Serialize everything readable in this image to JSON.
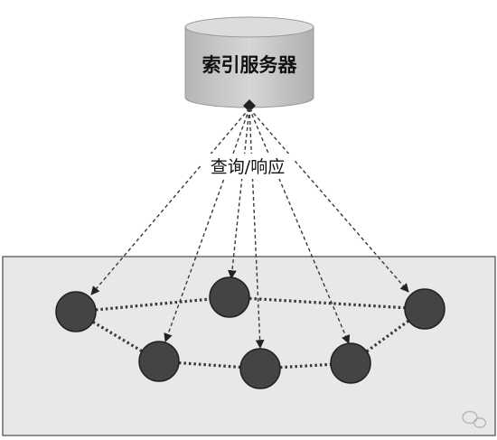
{
  "diagram": {
    "server_label": "索引服务器",
    "edge_label": "查询/响应",
    "watermark_icon": "wechat-icon",
    "colors": {
      "background": "#ffffff",
      "network_panel": "#e8e8e8",
      "panel_border": "#6a6a6a",
      "server_body": "#c9c9c9",
      "node_fill": "#444444",
      "node_stroke": "#222222",
      "edge": "#3a3a3a"
    }
  }
}
